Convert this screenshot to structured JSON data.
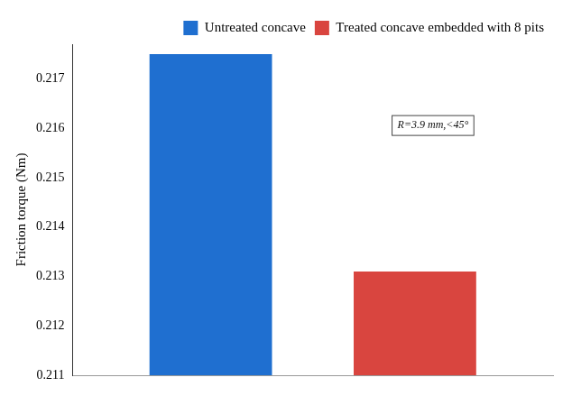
{
  "chart_data": {
    "type": "bar",
    "y_label": "Friction torque (Nm)",
    "categories": [
      null
    ],
    "series": [
      {
        "name": "Untreated concave",
        "color": "#1f6fd0",
        "values": [
          0.2175
        ]
      },
      {
        "name": "Treated concave embedded with 8 pits",
        "color": "#d9453f",
        "values": [
          0.2131
        ]
      }
    ],
    "ylim": [
      0.211,
      0.2177
    ],
    "yticks": [
      0.211,
      0.212,
      0.213,
      0.214,
      0.215,
      0.216,
      0.217
    ],
    "grid": false,
    "legend": "upper right",
    "tick_labels": "y",
    "annotation": "R=3.9 mm,<45°"
  }
}
